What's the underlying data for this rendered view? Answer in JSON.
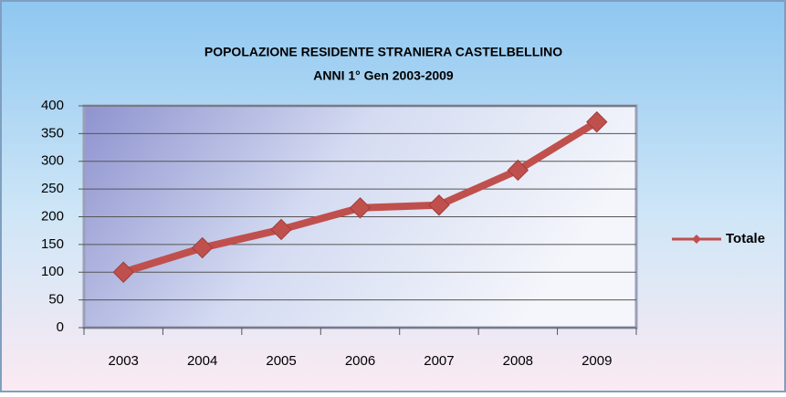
{
  "chart_data": {
    "type": "line",
    "title": [
      "POPOLAZIONE RESIDENTE STRANIERA CASTELBELLINO",
      "ANNI  1° Gen  2003-2009"
    ],
    "categories": [
      "2003",
      "2004",
      "2005",
      "2006",
      "2007",
      "2008",
      "2009"
    ],
    "series": [
      {
        "name": "Totale",
        "color": "#c0504d",
        "values": [
          100,
          144,
          177,
          216,
          221,
          284,
          371
        ]
      }
    ],
    "ylim": [
      0,
      400
    ],
    "yticks": [
      0,
      50,
      100,
      150,
      200,
      250,
      300,
      350,
      400
    ],
    "grid": true,
    "legend": "right"
  }
}
